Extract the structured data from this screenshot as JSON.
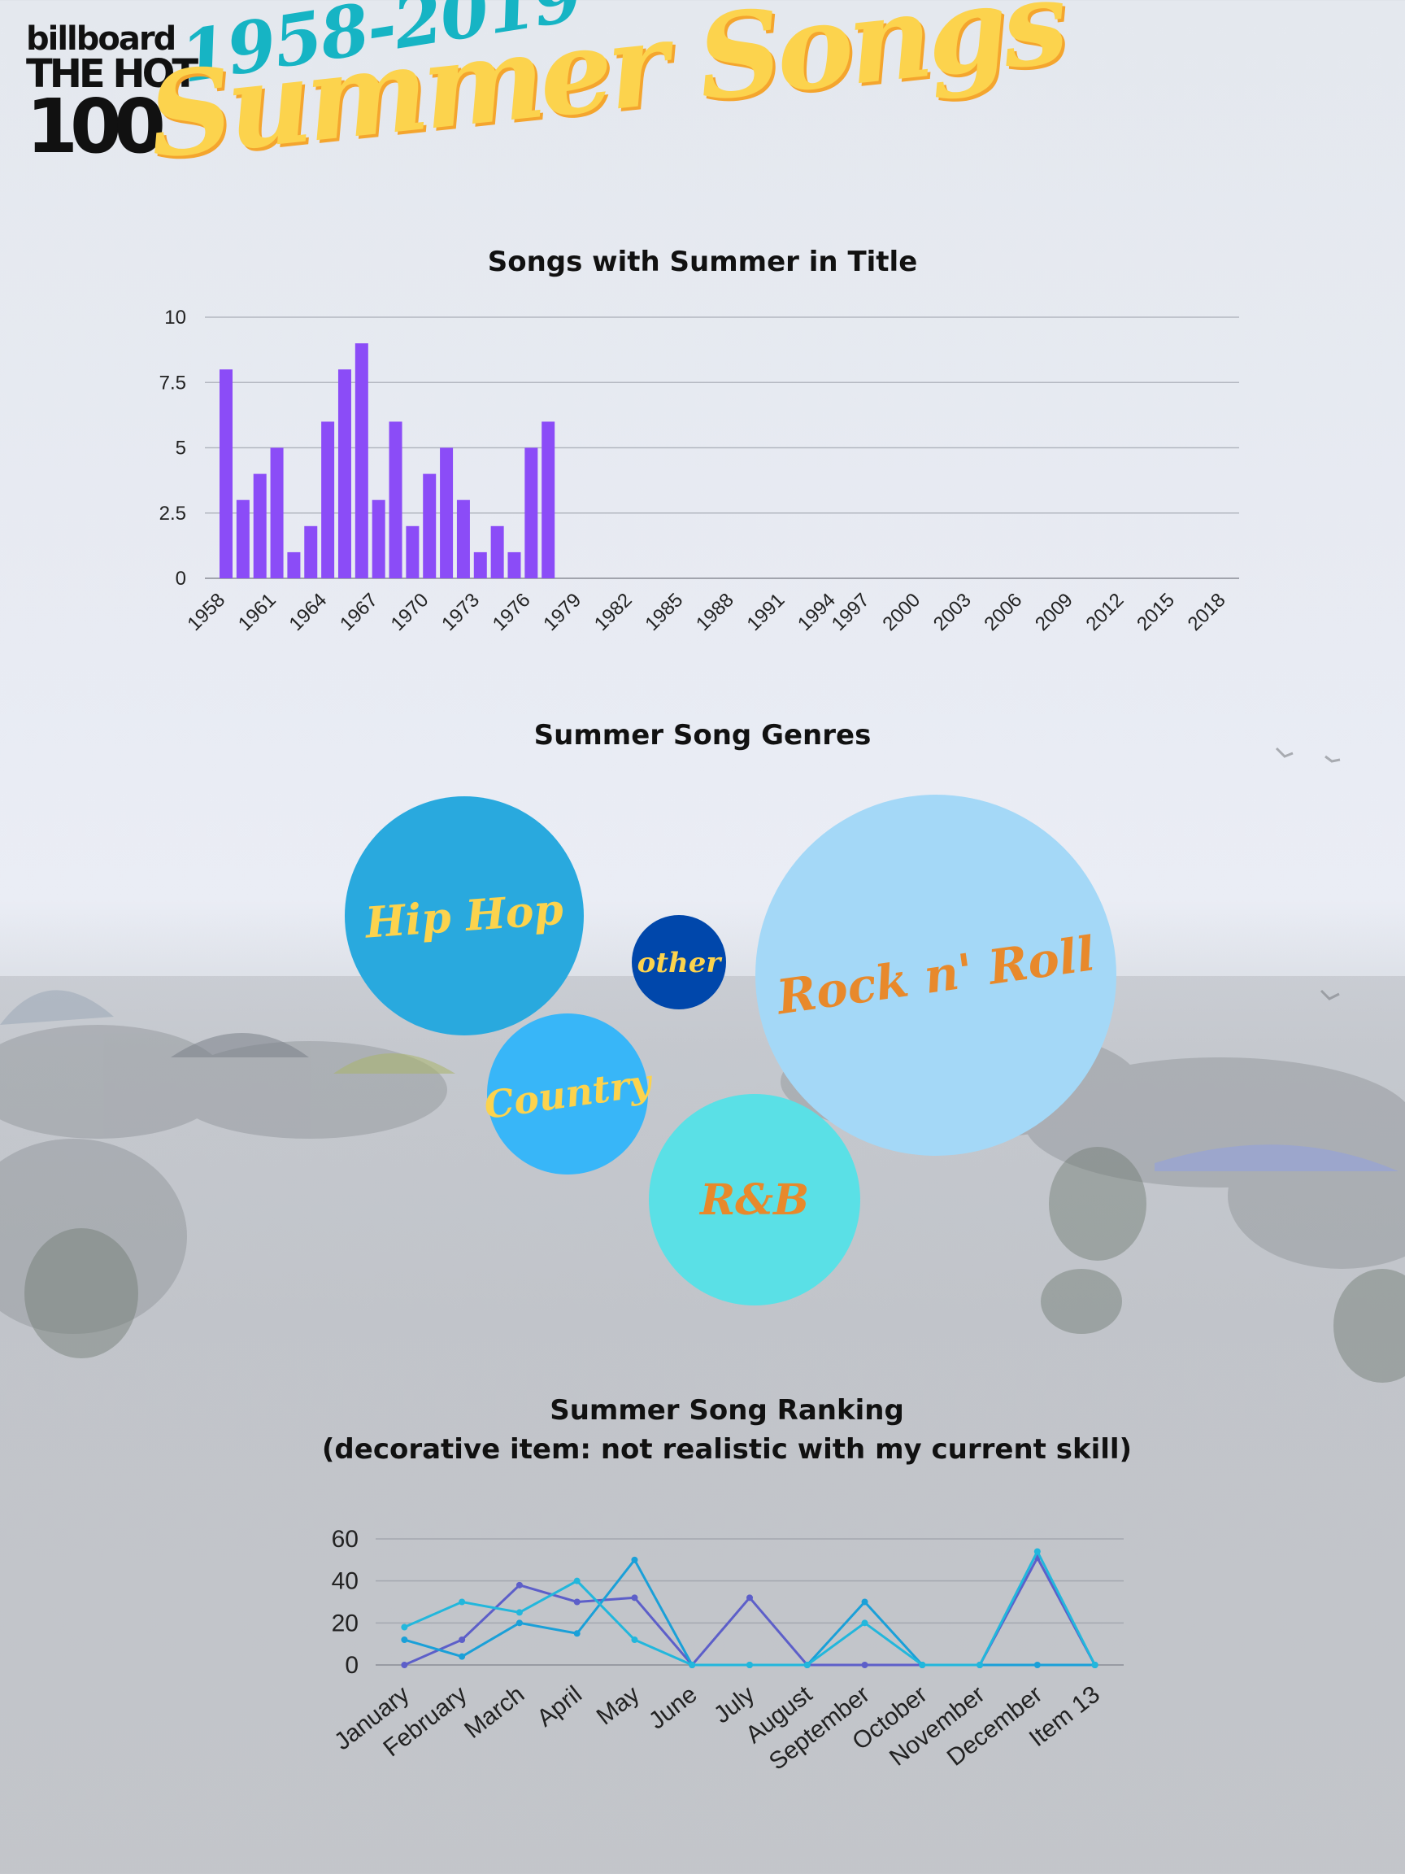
{
  "header": {
    "logo_line1": "billboard",
    "logo_line2": "THE HOT",
    "logo_line3": "100",
    "years": "1958-2019",
    "title": "Summer Songs"
  },
  "colors": {
    "bar": "#8b4cf7",
    "title_yellow": "#fcd34d",
    "years_teal": "#16b4c4"
  },
  "charts": {
    "bar_title": "Songs with Summer in Title",
    "bubble_title": "Summer Song Genres",
    "line_title_1": "Summer Song Ranking",
    "line_title_2": "(decorative item: not realistic with my current skill)"
  },
  "chart_data": [
    {
      "type": "bar",
      "title": "Songs with Summer in Title",
      "categories": [
        "1958",
        "1959",
        "1960",
        "1961",
        "1962",
        "1963",
        "1964",
        "1965",
        "1966",
        "1967",
        "1968",
        "1969",
        "1970",
        "1971",
        "1972",
        "1973",
        "1974",
        "1975",
        "1976",
        "1977",
        "1978",
        "1979",
        "1980",
        "1981",
        "1982",
        "1983",
        "1984",
        "1985",
        "1986",
        "1987",
        "1988",
        "1989",
        "1990",
        "1991",
        "1992",
        "1993",
        "1994",
        "1995",
        "1997",
        "1998",
        "1999",
        "2000",
        "2001",
        "2002",
        "2003",
        "2004",
        "2005",
        "2006",
        "2007",
        "2008",
        "2009",
        "2010",
        "2011",
        "2012",
        "2013",
        "2014",
        "2015",
        "2016",
        "2017",
        "2018",
        "2019"
      ],
      "tick_labels": [
        "1958",
        "1961",
        "1964",
        "1967",
        "1970",
        "1973",
        "1976",
        "1979",
        "1982",
        "1985",
        "1988",
        "1991",
        "1994",
        "1997",
        "2000",
        "2003",
        "2006",
        "2009",
        "2012",
        "2015",
        "2018"
      ],
      "values": [
        8,
        3,
        4,
        5,
        1,
        2,
        6,
        8,
        9,
        3,
        6,
        2,
        4,
        5,
        3,
        1,
        2,
        1,
        5,
        6,
        0,
        0,
        0,
        0,
        0,
        0,
        0,
        0,
        0,
        0,
        0,
        0,
        0,
        0,
        0,
        0,
        0,
        0,
        0,
        0,
        0,
        0,
        0,
        0,
        0,
        0,
        0,
        0,
        0,
        0,
        0,
        0,
        0,
        0,
        0,
        0,
        0,
        0,
        0,
        0,
        0
      ],
      "yticks": [
        "0",
        "2.5",
        "5",
        "7.5",
        "10"
      ],
      "ylim": [
        0,
        10
      ],
      "grid": true
    },
    {
      "type": "bubble",
      "title": "Summer Song Genres",
      "bubbles": [
        {
          "label": "Hip Hop",
          "color": "#29a9de",
          "text_color": "#fcd34d"
        },
        {
          "label": "other",
          "color": "#0047ab",
          "text_color": "#fcd34d"
        },
        {
          "label": "Rock n' Roll",
          "color": "#a4d8f7",
          "text_color": "#e8892b"
        },
        {
          "label": "Country",
          "color": "#38b6f8",
          "text_color": "#fcd34d"
        },
        {
          "label": "R&B",
          "color": "#5ae0e6",
          "text_color": "#e8892b"
        }
      ]
    },
    {
      "type": "line",
      "title": "Summer Song Ranking (decorative item: not realistic with my current skill)",
      "categories": [
        "January",
        "February",
        "March",
        "April",
        "May",
        "June",
        "July",
        "August",
        "September",
        "October",
        "November",
        "December",
        "Item 13"
      ],
      "yticks": [
        "0",
        "20",
        "40",
        "60"
      ],
      "ylim": [
        0,
        60
      ],
      "grid": true,
      "series": [
        {
          "color": "#5d5fc9",
          "values": [
            0,
            12,
            38,
            30,
            32,
            0,
            32,
            0,
            0,
            0,
            0,
            51,
            0
          ]
        },
        {
          "color": "#1aa0d8",
          "values": [
            12,
            4,
            20,
            15,
            50,
            0,
            0,
            0,
            30,
            0,
            0,
            0,
            0
          ]
        },
        {
          "color": "#22b7dc",
          "values": [
            18,
            30,
            25,
            40,
            12,
            0,
            0,
            0,
            20,
            0,
            0,
            54,
            0
          ]
        }
      ]
    }
  ]
}
